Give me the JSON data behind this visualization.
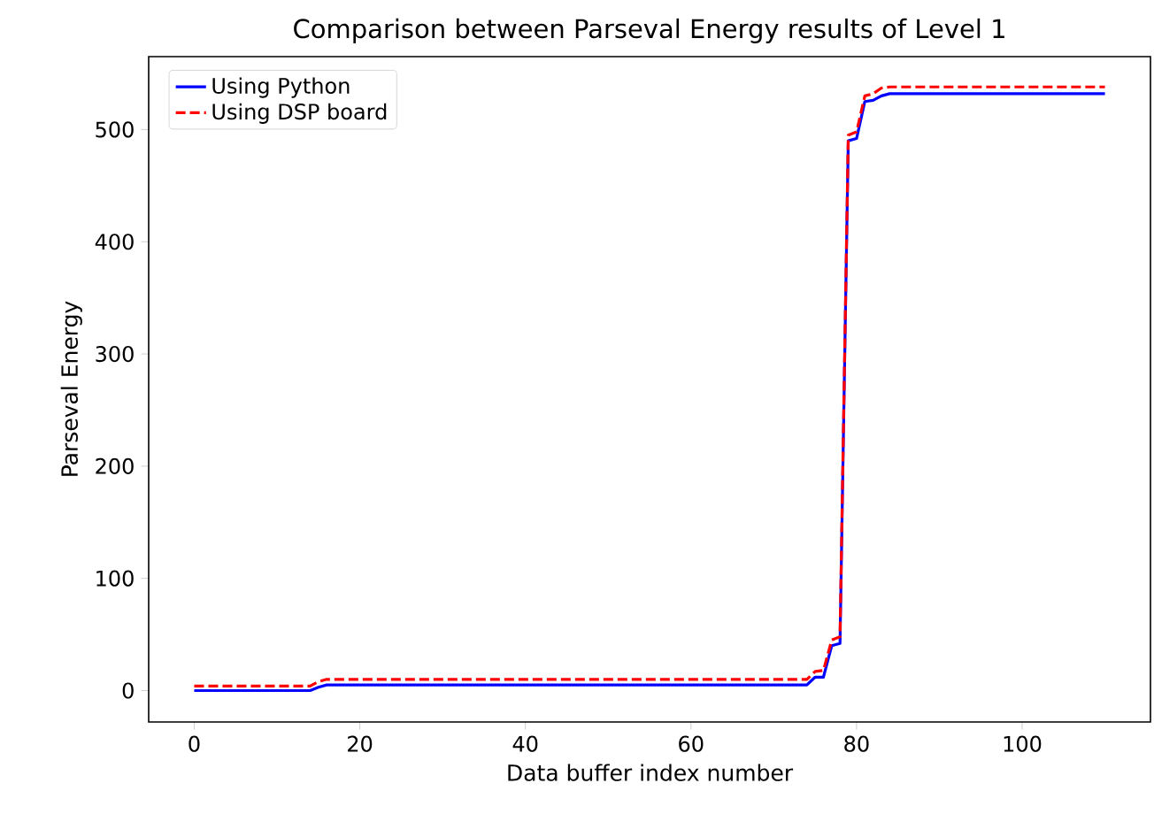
{
  "chart_data": {
    "type": "line",
    "title": "Comparison between Parseval Energy results of Level 1",
    "xlabel": "Data buffer index number",
    "ylabel": "Parseval Energy",
    "series": [
      {
        "name": "Using Python",
        "color": "#0000ff",
        "line_style": "solid",
        "x": [
          0,
          14,
          15,
          16,
          74,
          75,
          76,
          77,
          78,
          79,
          80,
          81,
          82,
          83,
          84,
          110
        ],
        "values": [
          0,
          0,
          3,
          5,
          5,
          12,
          12,
          40,
          42,
          490,
          492,
          525,
          526,
          530,
          532,
          532
        ]
      },
      {
        "name": "Using DSP board",
        "color": "#ff0000",
        "line_style": "dashed",
        "x": [
          0,
          14,
          15,
          16,
          74,
          75,
          76,
          77,
          78,
          79,
          80,
          81,
          82,
          83,
          84,
          110
        ],
        "values": [
          4,
          4,
          8,
          10,
          10,
          17,
          18,
          45,
          48,
          495,
          498,
          530,
          532,
          537,
          538,
          538
        ]
      }
    ],
    "xlim": [
      -5.5,
      115.5
    ],
    "ylim": [
      -28,
      565
    ],
    "xticks": [
      0,
      20,
      40,
      60,
      80,
      100
    ],
    "yticks": [
      0,
      100,
      200,
      300,
      400,
      500
    ],
    "grid": false,
    "legend": "top left",
    "marker": "none"
  }
}
